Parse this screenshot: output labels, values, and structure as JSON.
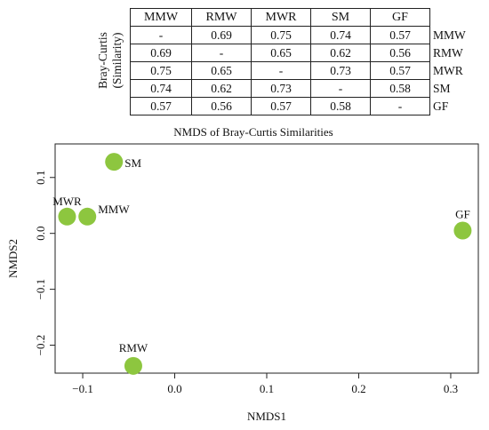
{
  "table": {
    "side_label_line1": "Bray-Curtis",
    "side_label_line2": "(Similarity)",
    "columns": [
      "MMW",
      "RMW",
      "MWR",
      "SM",
      "GF"
    ],
    "rows": [
      {
        "label": "MMW",
        "cells": [
          "-",
          "0.69",
          "0.75",
          "0.74",
          "0.57"
        ]
      },
      {
        "label": "RMW",
        "cells": [
          "0.69",
          "-",
          "0.65",
          "0.62",
          "0.56"
        ]
      },
      {
        "label": "MWR",
        "cells": [
          "0.75",
          "0.65",
          "-",
          "0.73",
          "0.57"
        ]
      },
      {
        "label": "SM",
        "cells": [
          "0.74",
          "0.62",
          "0.73",
          "-",
          "0.58"
        ]
      },
      {
        "label": "GF",
        "cells": [
          "0.57",
          "0.56",
          "0.57",
          "0.58",
          "-"
        ]
      }
    ]
  },
  "chart_data": {
    "type": "scatter",
    "title": "NMDS of Bray-Curtis Similarities",
    "xlabel": "NMDS1",
    "ylabel": "NMDS2",
    "xlim": [
      -0.13,
      0.33
    ],
    "ylim": [
      -0.25,
      0.16
    ],
    "xticks": [
      -0.1,
      0.0,
      0.1,
      0.2,
      0.3
    ],
    "xtick_labels": [
      "−0.1",
      "0.0",
      "0.1",
      "0.2",
      "0.3"
    ],
    "yticks": [
      -0.2,
      -0.1,
      0.0,
      0.1
    ],
    "ytick_labels": [
      "−0.2",
      "−0.1",
      "0.0",
      "0.1"
    ],
    "grid": false,
    "point_color": "#8dc63f",
    "points": [
      {
        "label": "SM",
        "x": -0.066,
        "y": 0.128
      },
      {
        "label": "MWR",
        "x": -0.117,
        "y": 0.03
      },
      {
        "label": "MMW",
        "x": -0.095,
        "y": 0.03
      },
      {
        "label": "GF",
        "x": 0.313,
        "y": 0.005
      },
      {
        "label": "RMW",
        "x": -0.045,
        "y": -0.237
      }
    ]
  }
}
